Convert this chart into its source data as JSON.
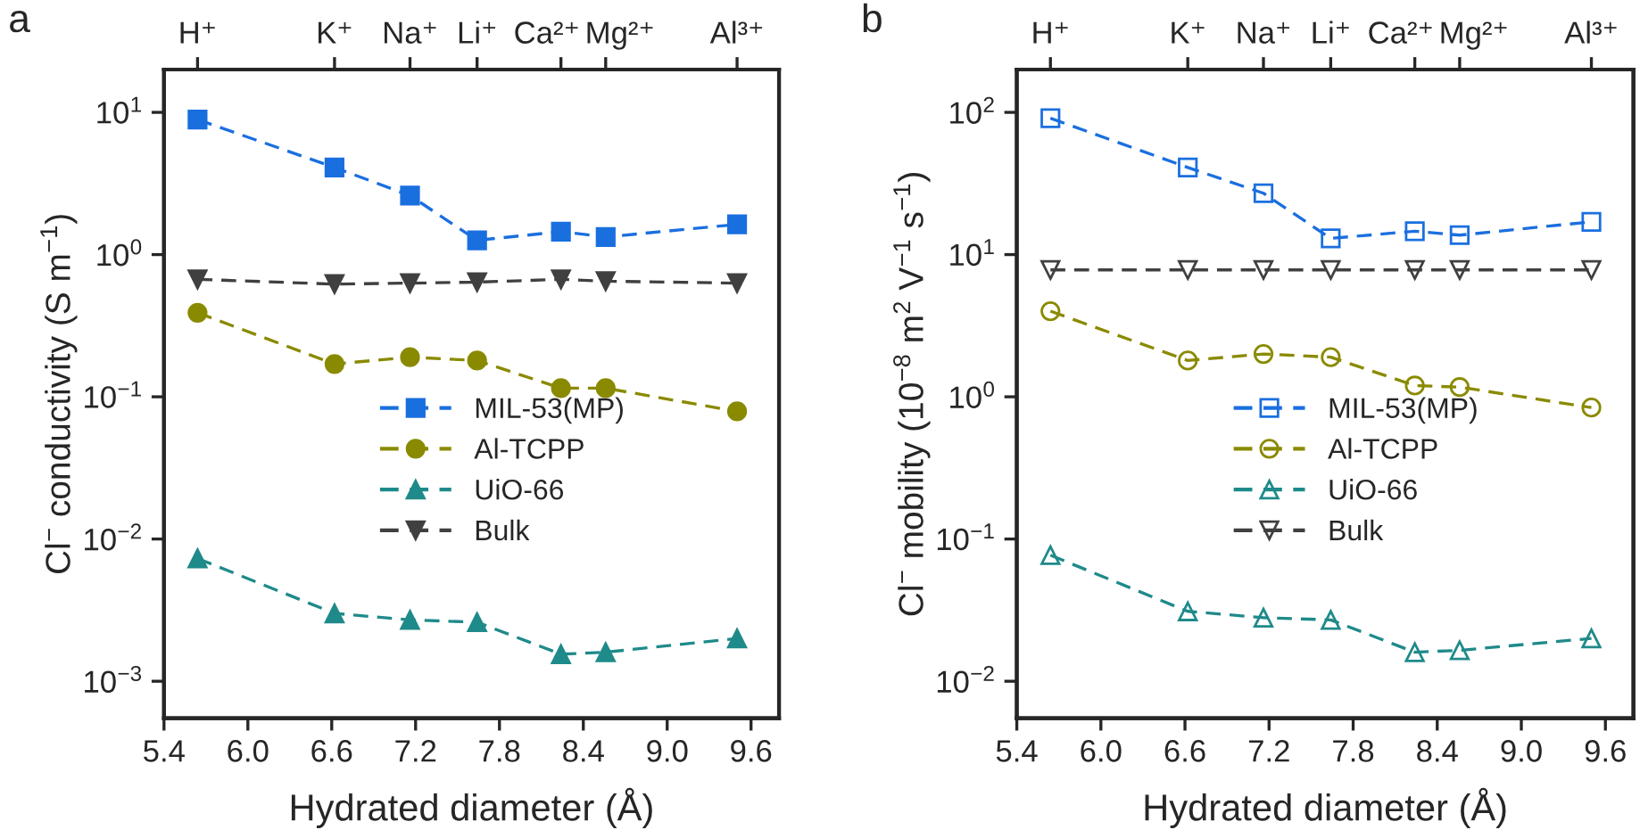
{
  "chart_data": [
    {
      "type": "line",
      "title": "a",
      "xlabel": "Hydrated diameter (Å)",
      "ylabel": "Cl$^{−}$ conductivity (S m$^{−1}$)",
      "log": "y",
      "grid": false,
      "legend": "center",
      "line_style": "dashed",
      "x": [
        5.64,
        6.62,
        7.16,
        7.64,
        8.24,
        8.56,
        9.5
      ],
      "xlim": [
        5.4,
        9.8
      ],
      "xticks": [
        {
          "value": 5.4,
          "label": "5.4"
        },
        {
          "value": 6.0,
          "label": "6.0"
        },
        {
          "value": 6.6,
          "label": "6.6"
        },
        {
          "value": 7.2,
          "label": "7.2"
        },
        {
          "value": 7.8,
          "label": "7.8"
        },
        {
          "value": 8.4,
          "label": "8.4"
        },
        {
          "value": 9.0,
          "label": "9.0"
        },
        {
          "value": 9.6,
          "label": "9.6"
        }
      ],
      "annotations": [
        {
          "text": "H⁺",
          "x": 5.64
        },
        {
          "text": "K⁺",
          "x": 6.62
        },
        {
          "text": "Na⁺",
          "x": 7.16
        },
        {
          "text": "Li⁺",
          "x": 7.64
        },
        {
          "text": "Ca²⁺",
          "x": 8.24
        },
        {
          "text": "Mg²⁺",
          "x": 8.56
        },
        {
          "text": "Al³⁺",
          "x": 9.5
        }
      ],
      "ylim": [
        0.00055,
        20
      ],
      "yticks": [
        {
          "value": 0.001,
          "label": "10$^{−3}$"
        },
        {
          "value": 0.01,
          "label": "10$^{−2}$"
        },
        {
          "value": 0.1,
          "label": "10$^{−1}$"
        },
        {
          "value": 1,
          "label": "10$^{0}$"
        },
        {
          "value": 10,
          "label": "10$^{1}$"
        }
      ],
      "series": [
        {
          "name": "MIL-53(MP)",
          "color": "#1a6fdf",
          "marker": "square",
          "values": [
            8.9,
            4.1,
            2.6,
            1.26,
            1.45,
            1.33,
            1.63
          ]
        },
        {
          "name": "Al-TCPP",
          "color": "#8a8a00",
          "marker": "circle",
          "values": [
            0.39,
            0.17,
            0.19,
            0.18,
            0.115,
            0.115,
            0.079
          ]
        },
        {
          "name": "UiO-66",
          "color": "#1f8a8a",
          "marker": "triangle",
          "values": [
            0.0073,
            0.003,
            0.0027,
            0.0026,
            0.00155,
            0.0016,
            0.002
          ]
        },
        {
          "name": "Bulk",
          "color": "#404040",
          "marker": "triangle_down",
          "values": [
            0.67,
            0.62,
            0.63,
            0.64,
            0.67,
            0.65,
            0.63
          ]
        }
      ]
    },
    {
      "type": "line",
      "title": "b",
      "xlabel": "Hydrated diameter (Å)",
      "ylabel": "Cl$^{−}$ mobility (10$^{−8}$ m$^{2}$ V$^{−1}$ s$^{−1}$)",
      "log": "y",
      "grid": false,
      "legend": "center",
      "line_style": "dashed",
      "x": [
        5.64,
        6.62,
        7.16,
        7.64,
        8.24,
        8.56,
        9.5
      ],
      "xlim": [
        5.4,
        9.8
      ],
      "xticks": [
        {
          "value": 5.4,
          "label": "5.4"
        },
        {
          "value": 6.0,
          "label": "6.0"
        },
        {
          "value": 6.6,
          "label": "6.6"
        },
        {
          "value": 7.2,
          "label": "7.2"
        },
        {
          "value": 7.8,
          "label": "7.8"
        },
        {
          "value": 8.4,
          "label": "8.4"
        },
        {
          "value": 9.0,
          "label": "9.0"
        },
        {
          "value": 9.6,
          "label": "9.6"
        }
      ],
      "annotations": [
        {
          "text": "H⁺",
          "x": 5.64
        },
        {
          "text": "K⁺",
          "x": 6.62
        },
        {
          "text": "Na⁺",
          "x": 7.16
        },
        {
          "text": "Li⁺",
          "x": 7.64
        },
        {
          "text": "Ca²⁺",
          "x": 8.24
        },
        {
          "text": "Mg²⁺",
          "x": 8.56
        },
        {
          "text": "Al³⁺",
          "x": 9.5
        }
      ],
      "ylim": [
        0.0055,
        200
      ],
      "yticks": [
        {
          "value": 0.01,
          "label": "10$^{−2}$"
        },
        {
          "value": 0.1,
          "label": "10$^{−1}$"
        },
        {
          "value": 1,
          "label": "10$^{0}$"
        },
        {
          "value": 10,
          "label": "10$^{1}$"
        },
        {
          "value": 100,
          "label": "10$^{2}$"
        }
      ],
      "series": [
        {
          "name": "MIL-53(MP)",
          "color": "#1a6fdf",
          "marker": "square",
          "values": [
            91,
            41,
            27,
            13,
            14.6,
            13.7,
            17
          ]
        },
        {
          "name": "Al-TCPP",
          "color": "#8a8a00",
          "marker": "circle",
          "values": [
            4.0,
            1.8,
            2.0,
            1.9,
            1.2,
            1.17,
            0.84
          ]
        },
        {
          "name": "UiO-66",
          "color": "#1f8a8a",
          "marker": "triangle",
          "values": [
            0.077,
            0.031,
            0.028,
            0.027,
            0.016,
            0.0165,
            0.02
          ]
        },
        {
          "name": "Bulk",
          "color": "#404040",
          "marker": "triangle_down",
          "values": [
            7.8,
            7.8,
            7.8,
            7.8,
            7.8,
            7.8,
            7.8
          ]
        }
      ]
    }
  ]
}
